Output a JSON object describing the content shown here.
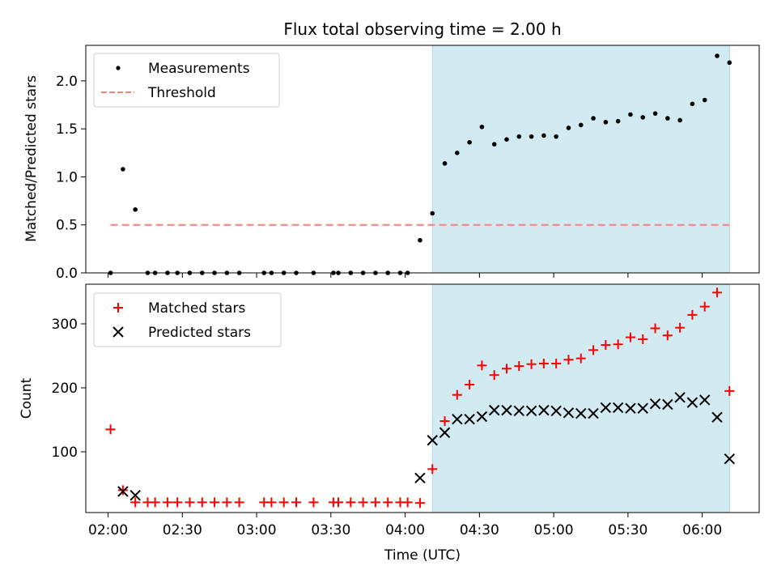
{
  "title": "Flux total observing time = 2.00 h",
  "xlabel": "Time (UTC)",
  "colors": {
    "shade": "#add8e6",
    "threshold": "#ff7f7f",
    "matched": "#ff0000",
    "predicted": "#000000",
    "measure": "#000000"
  },
  "chart_data": [
    {
      "type": "scatter",
      "ylabel": "Matched/Predicted stars",
      "xlim": [
        "01:51",
        "06:23"
      ],
      "ylim": [
        0,
        2.37
      ],
      "yticks": [
        0.0,
        0.5,
        1.0,
        1.5,
        2.0
      ],
      "ytick_labels": [
        "0.0",
        "0.5",
        "1.0",
        "1.5",
        "2.0"
      ],
      "shaded_region": [
        "04:11",
        "06:11"
      ],
      "legend": {
        "placement": "upper-left",
        "entries": [
          "Measurements",
          "Threshold"
        ]
      },
      "threshold": {
        "name": "Threshold",
        "value": 0.5,
        "x": [
          "02:01",
          "06:11"
        ],
        "style": "dashed"
      },
      "series": [
        {
          "name": "Measurements",
          "marker": "dot",
          "x": [
            "02:01",
            "02:06",
            "02:11",
            "02:16",
            "02:19",
            "02:24",
            "02:28",
            "02:33",
            "02:38",
            "02:43",
            "02:48",
            "02:53",
            "03:03",
            "03:06",
            "03:11",
            "03:16",
            "03:23",
            "03:31",
            "03:33",
            "03:38",
            "03:43",
            "03:48",
            "03:53",
            "03:58",
            "04:01",
            "04:06",
            "04:11",
            "04:16",
            "04:21",
            "04:26",
            "04:31",
            "04:36",
            "04:41",
            "04:46",
            "04:51",
            "04:56",
            "05:01",
            "05:06",
            "05:11",
            "05:16",
            "05:21",
            "05:26",
            "05:31",
            "05:36",
            "05:41",
            "05:46",
            "05:51",
            "05:56",
            "06:01",
            "06:06",
            "06:11"
          ],
          "y": [
            0,
            1.08,
            0.66,
            0,
            0,
            0,
            0,
            0,
            0,
            0,
            0,
            0,
            0,
            0,
            0,
            0,
            0,
            0,
            0,
            0,
            0,
            0,
            0,
            0,
            0,
            0.34,
            0.62,
            1.14,
            1.25,
            1.36,
            1.52,
            1.34,
            1.39,
            1.42,
            1.42,
            1.43,
            1.42,
            1.51,
            1.54,
            1.61,
            1.57,
            1.58,
            1.65,
            1.62,
            1.66,
            1.61,
            1.59,
            1.76,
            1.8,
            2.26,
            2.19
          ]
        }
      ]
    },
    {
      "type": "scatter",
      "ylabel": "Count",
      "xlim": [
        "01:51",
        "06:23"
      ],
      "ylim": [
        5,
        362
      ],
      "yticks": [
        100,
        200,
        300
      ],
      "ytick_labels": [
        "100",
        "200",
        "300"
      ],
      "xtick_labels": [
        "02:00",
        "02:30",
        "03:00",
        "03:30",
        "04:00",
        "04:30",
        "05:00",
        "05:30",
        "06:00"
      ],
      "shaded_region": [
        "04:11",
        "06:11"
      ],
      "legend": {
        "placement": "upper-left",
        "entries": [
          "Matched stars",
          "Predicted stars"
        ]
      },
      "series": [
        {
          "name": "Matched stars",
          "marker": "plus",
          "x": [
            "02:01",
            "02:06",
            "02:11",
            "02:16",
            "02:19",
            "02:24",
            "02:28",
            "02:33",
            "02:38",
            "02:43",
            "02:48",
            "02:53",
            "03:03",
            "03:06",
            "03:11",
            "03:16",
            "03:23",
            "03:31",
            "03:33",
            "03:38",
            "03:43",
            "03:48",
            "03:53",
            "03:58",
            "04:01",
            "04:06",
            "04:11",
            "04:16",
            "04:21",
            "04:26",
            "04:31",
            "04:36",
            "04:41",
            "04:46",
            "04:51",
            "04:56",
            "05:01",
            "05:06",
            "05:11",
            "05:16",
            "05:21",
            "05:26",
            "05:31",
            "05:36",
            "05:41",
            "05:46",
            "05:51",
            "05:56",
            "06:01",
            "06:06",
            "06:11"
          ],
          "y": [
            135,
            40,
            21,
            21,
            21,
            21,
            21,
            21,
            21,
            21,
            21,
            21,
            21,
            21,
            21,
            21,
            21,
            21,
            21,
            21,
            21,
            21,
            21,
            21,
            21,
            20,
            73,
            148,
            189,
            205,
            235,
            220,
            230,
            234,
            237,
            238,
            238,
            244,
            246,
            259,
            267,
            268,
            279,
            276,
            293,
            282,
            294,
            314,
            327,
            349,
            195
          ]
        },
        {
          "name": "Predicted stars",
          "marker": "x",
          "x": [
            "02:06",
            "02:11",
            "04:06",
            "04:11",
            "04:16",
            "04:21",
            "04:26",
            "04:31",
            "04:36",
            "04:41",
            "04:46",
            "04:51",
            "04:56",
            "05:01",
            "05:06",
            "05:11",
            "05:16",
            "05:21",
            "05:26",
            "05:31",
            "05:36",
            "05:41",
            "05:46",
            "05:51",
            "05:56",
            "06:01",
            "06:06",
            "06:11"
          ],
          "y": [
            38,
            32,
            59,
            118,
            130,
            151,
            151,
            155,
            165,
            165,
            164,
            164,
            165,
            164,
            161,
            160,
            160,
            169,
            169,
            168,
            168,
            175,
            174,
            185,
            177,
            181,
            154,
            89
          ]
        }
      ]
    }
  ]
}
